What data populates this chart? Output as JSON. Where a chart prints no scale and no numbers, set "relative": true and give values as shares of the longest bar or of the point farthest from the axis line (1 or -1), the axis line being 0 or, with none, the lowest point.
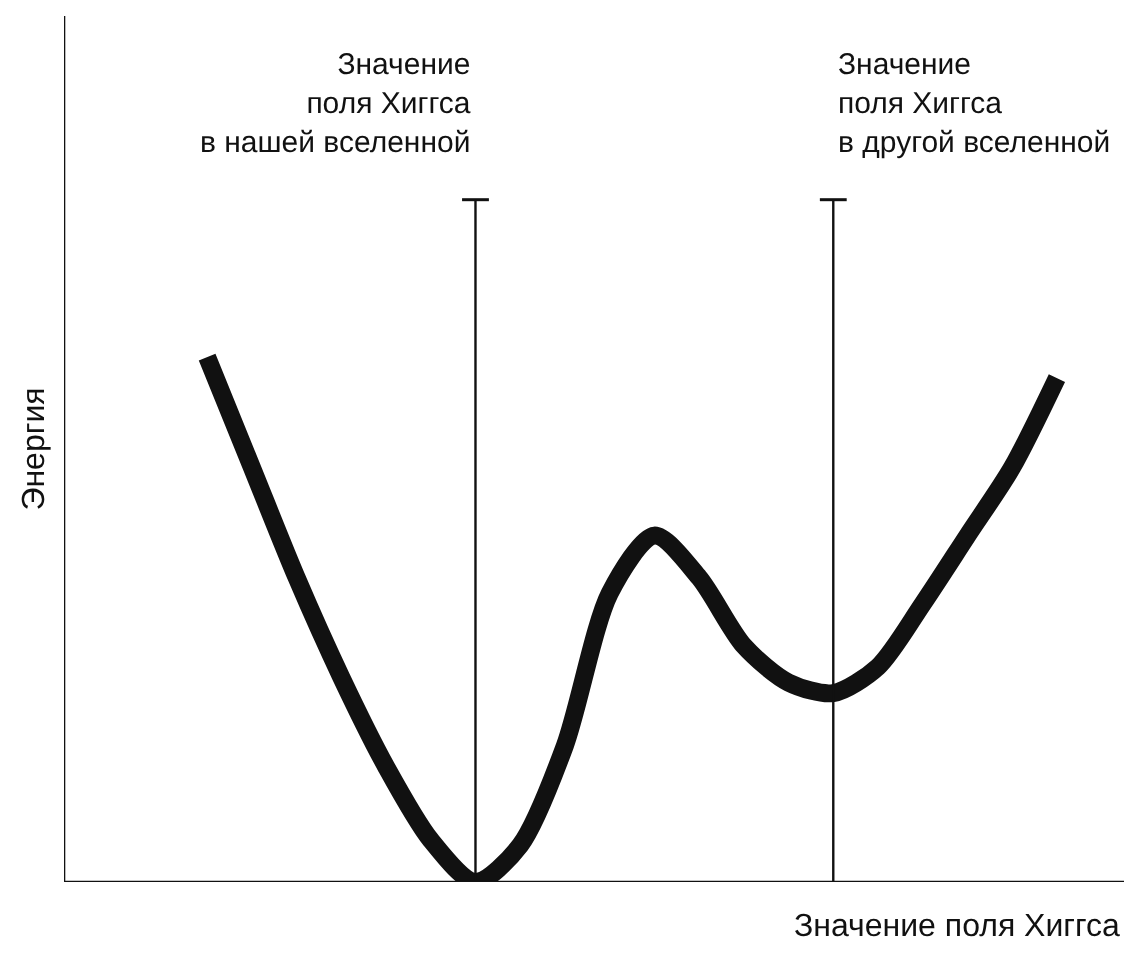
{
  "chart_data": {
    "type": "line",
    "relative": true,
    "xlabel": "Значение поля Хиггса",
    "ylabel": "Энергия",
    "categories": [
      null,
      null,
      null,
      null,
      null,
      null,
      null,
      null,
      null,
      null,
      null,
      null,
      null,
      null,
      null,
      null,
      null,
      null,
      null,
      null
    ],
    "series": [
      {
        "color": "#111111",
        "values": [
          1.0,
          0.79,
          0.58,
          0.39,
          0.22,
          0.08,
          0.0,
          0.07,
          0.26,
          0.55,
          0.66,
          0.58,
          0.45,
          0.38,
          0.36,
          0.41,
          0.53,
          0.66,
          0.79,
          0.96
        ]
      }
    ],
    "annotations": [
      "Значение\nполя Хиггса\nв нашей вселенной",
      "Значение\nполя Хиггса\nв другой вселенной"
    ],
    "marker": "none",
    "line_style": "solid"
  }
}
